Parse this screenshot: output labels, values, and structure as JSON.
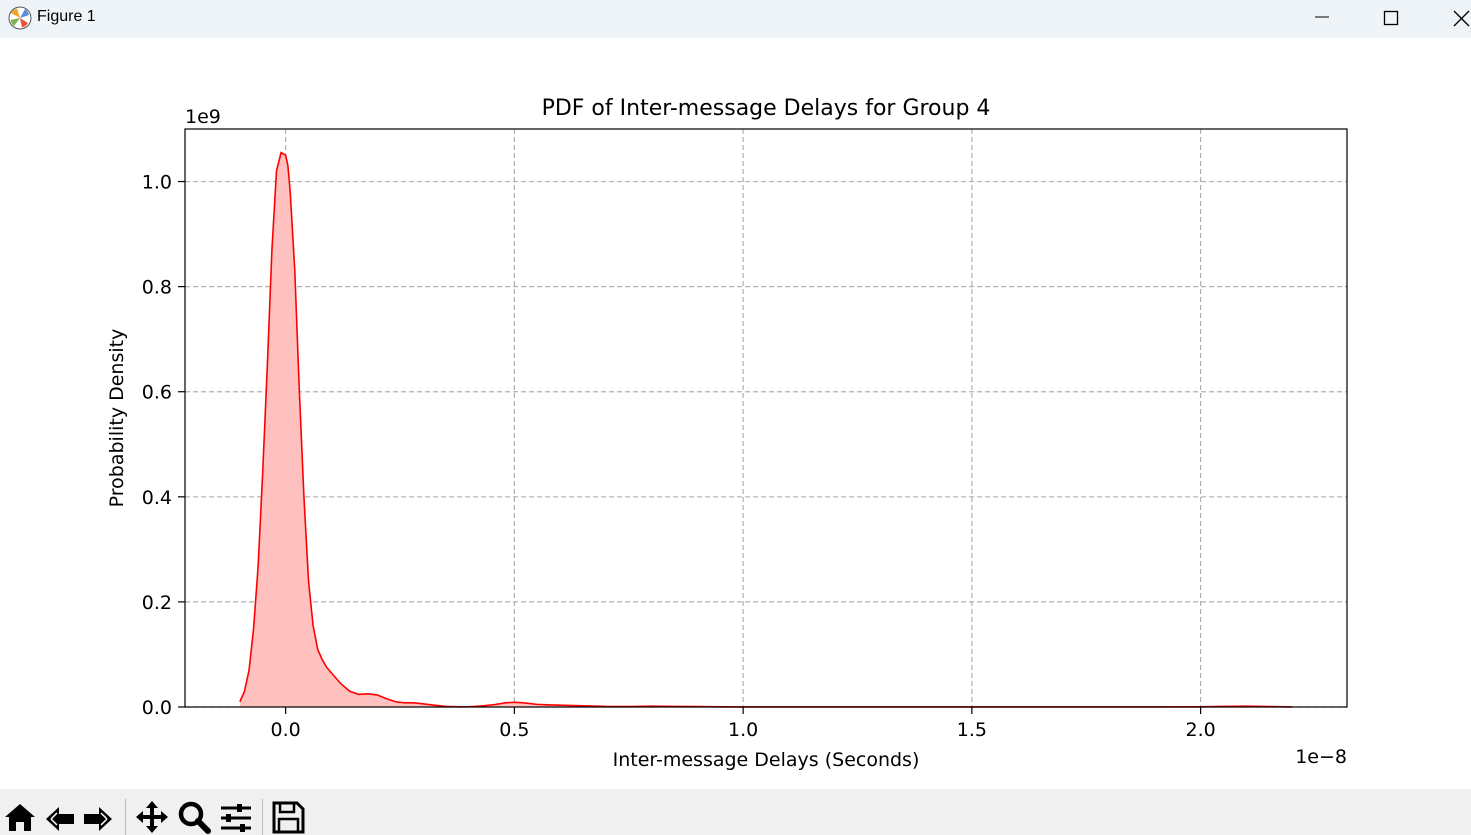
{
  "window": {
    "title": "Figure 1",
    "icons": {
      "app": "matplotlib-icon",
      "minimize": "minimize-icon",
      "maximize": "maximize-icon",
      "close": "close-icon"
    }
  },
  "toolbar": {
    "tools": [
      {
        "name": "home-icon"
      },
      {
        "name": "back-icon"
      },
      {
        "name": "forward-icon"
      },
      {
        "name": "pan-icon"
      },
      {
        "name": "zoom-icon"
      },
      {
        "name": "configure-subplots-icon"
      },
      {
        "name": "save-icon"
      }
    ]
  },
  "colors": {
    "line": "#ff0000",
    "fill": "#ffc0c0",
    "grid": "#b0b0b0",
    "axes": "#000000"
  },
  "chart_data": {
    "type": "area",
    "title": "PDF of Inter-message Delays for Group 4",
    "xlabel": "Inter-message Delays (Seconds)",
    "ylabel": "Probability Density",
    "x_offset_text": "1e−8",
    "y_offset_text": "1e9",
    "xlim": [
      -0.22,
      2.32
    ],
    "ylim": [
      0,
      1.1
    ],
    "xticks": [
      0.0,
      0.5,
      1.0,
      1.5,
      2.0
    ],
    "xtick_labels": [
      "0.0",
      "0.5",
      "1.0",
      "1.5",
      "2.0"
    ],
    "yticks": [
      0.0,
      0.2,
      0.4,
      0.6,
      0.8,
      1.0
    ],
    "ytick_labels": [
      "0.0",
      "0.2",
      "0.4",
      "0.6",
      "0.8",
      "1.0"
    ],
    "grid": true,
    "grid_style": "dashed",
    "series": [
      {
        "x": [
          -0.1,
          -0.09,
          -0.08,
          -0.07,
          -0.06,
          -0.05,
          -0.04,
          -0.03,
          -0.02,
          -0.01,
          0.0,
          0.005,
          0.01,
          0.02,
          0.03,
          0.04,
          0.05,
          0.06,
          0.07,
          0.08,
          0.09,
          0.1,
          0.12,
          0.14,
          0.16,
          0.18,
          0.2,
          0.22,
          0.24,
          0.26,
          0.28,
          0.3,
          0.32,
          0.35,
          0.38,
          0.4,
          0.43,
          0.46,
          0.48,
          0.5,
          0.52,
          0.55,
          0.58,
          0.62,
          0.66,
          0.7,
          0.75,
          0.8,
          0.85,
          0.9,
          0.95,
          1.0,
          1.2,
          1.5,
          1.8,
          2.0,
          2.05,
          2.1,
          2.15,
          2.2
        ],
        "y": [
          0.01,
          0.03,
          0.07,
          0.15,
          0.27,
          0.45,
          0.65,
          0.87,
          1.02,
          1.055,
          1.05,
          1.03,
          0.98,
          0.83,
          0.6,
          0.4,
          0.24,
          0.155,
          0.11,
          0.09,
          0.075,
          0.065,
          0.045,
          0.03,
          0.024,
          0.025,
          0.023,
          0.016,
          0.01,
          0.008,
          0.008,
          0.006,
          0.004,
          0.001,
          0.0003,
          0.0005,
          0.002,
          0.005,
          0.008,
          0.009,
          0.008,
          0.005,
          0.004,
          0.003,
          0.002,
          0.001,
          0.0008,
          0.0015,
          0.001,
          0.0008,
          0.0003,
          0.0002,
          0.0001,
          0.0001,
          0.0001,
          0.0003,
          0.001,
          0.0015,
          0.0008,
          0.0001
        ]
      }
    ]
  }
}
